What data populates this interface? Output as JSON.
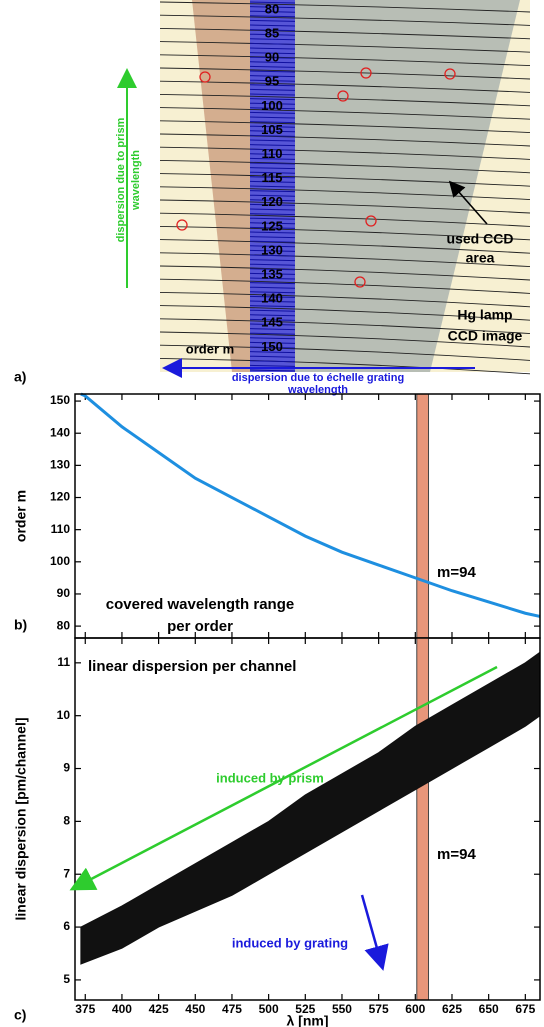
{
  "panel_a": {
    "label": "a)",
    "order_labels": [
      80,
      85,
      90,
      95,
      100,
      105,
      110,
      115,
      120,
      125,
      130,
      135,
      140,
      145,
      150
    ],
    "order_axis_label": "order m",
    "prism_arrow_label": [
      "dispersion due to prism",
      "wavelength"
    ],
    "grating_arrow_label": [
      "dispersion due to échelle grating",
      "wavelength"
    ],
    "ccd_area_label": [
      "used CCD",
      "area"
    ],
    "image_label": [
      "Hg lamp",
      "CCD image"
    ]
  },
  "chart_data": [
    {
      "type": "line",
      "panel_label": "b)",
      "ylabel": "order m",
      "x": [
        372,
        375,
        400,
        425,
        450,
        475,
        500,
        525,
        550,
        575,
        600,
        625,
        650,
        675,
        685
      ],
      "series": [
        {
          "color": "#1e8fe0",
          "values": [
            152.2,
            151.6,
            142,
            134,
            126,
            120,
            114,
            108,
            103,
            99,
            95,
            91,
            87.5,
            84,
            83
          ]
        }
      ],
      "xlim": [
        368,
        685
      ],
      "ylim": [
        76.3,
        152.2
      ],
      "xticks": [
        375,
        400,
        425,
        450,
        475,
        500,
        525,
        550,
        575,
        600,
        625,
        650,
        675
      ],
      "yticks": [
        80,
        90,
        100,
        110,
        120,
        130,
        140,
        150
      ],
      "show_xtick_labels": false,
      "highlight_band": [
        601,
        609
      ],
      "band_color": "#e8967a",
      "annotations": [
        "m=94",
        "covered wavelength range",
        "per order"
      ]
    },
    {
      "type": "range",
      "panel_label": "c)",
      "xlabel": "λ [nm]",
      "ylabel": "linear dispersion [pm/channel]",
      "x": [
        372,
        400,
        425,
        450,
        475,
        500,
        525,
        550,
        575,
        600,
        625,
        650,
        675,
        685
      ],
      "series": [
        {
          "color": "#111111",
          "lower": [
            5.3,
            5.6,
            6.0,
            6.3,
            6.6,
            7.0,
            7.4,
            7.8,
            8.2,
            8.6,
            9.0,
            9.4,
            9.8,
            10.0
          ],
          "upper": [
            6.0,
            6.4,
            6.8,
            7.2,
            7.6,
            8.0,
            8.5,
            8.9,
            9.3,
            9.8,
            10.2,
            10.6,
            11.0,
            11.2
          ]
        }
      ],
      "xlim": [
        368,
        685
      ],
      "ylim": [
        4.62,
        11.47
      ],
      "xticks": [
        375,
        400,
        425,
        450,
        475,
        500,
        525,
        550,
        575,
        600,
        625,
        650,
        675
      ],
      "yticks": [
        5,
        6,
        7,
        8,
        9,
        10,
        11
      ],
      "show_xtick_labels": true,
      "highlight_band": [
        601,
        609
      ],
      "band_color": "#e8967a",
      "annotations": [
        "linear dispersion per channel",
        "induced by prism",
        "induced by grating",
        "m=94"
      ]
    }
  ]
}
